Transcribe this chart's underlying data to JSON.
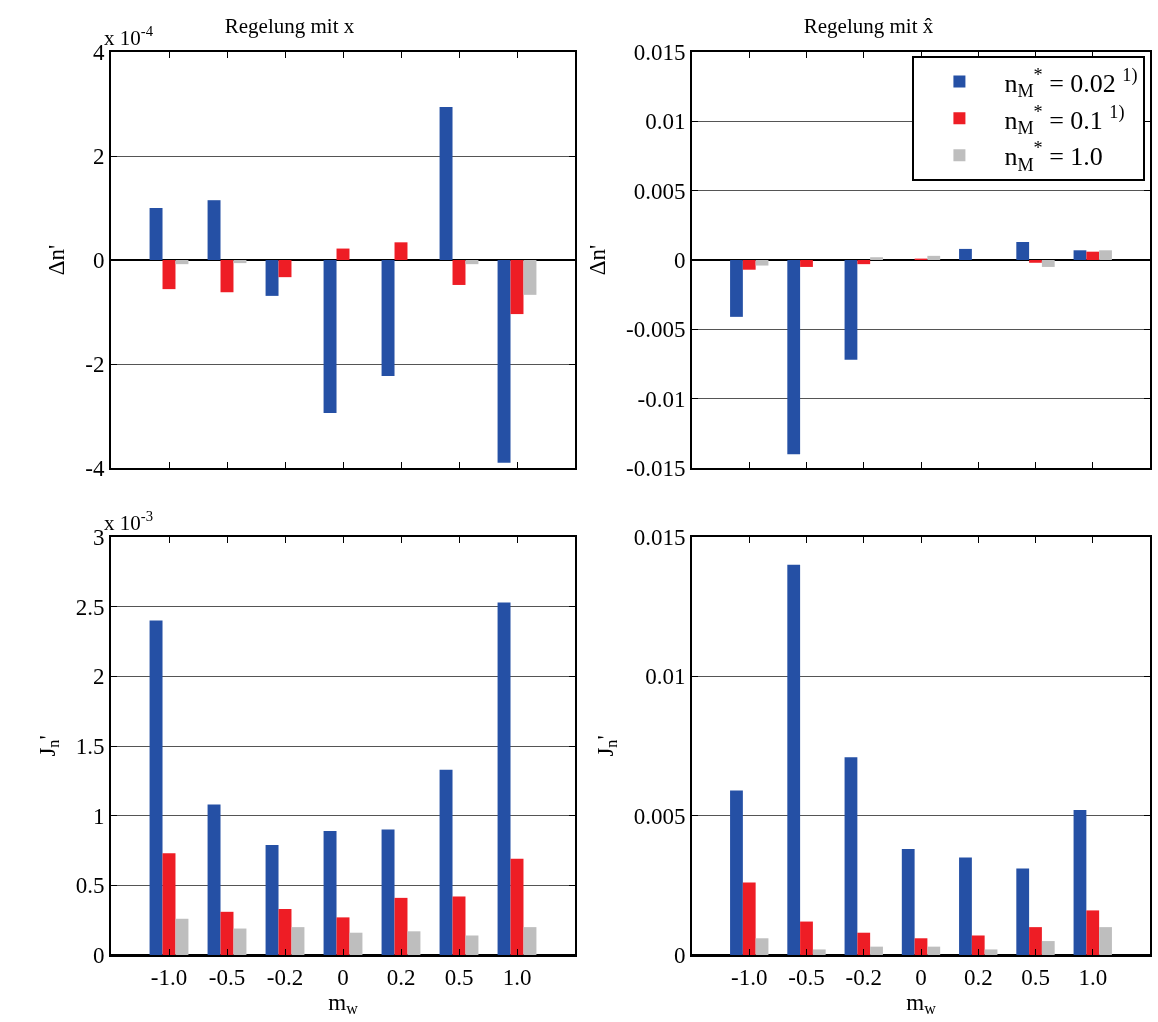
{
  "chart_data": [
    {
      "type": "bar",
      "title": "Regelung mit x",
      "ylabel": "Δn'",
      "annotations": [
        "x 10$^{-4}$"
      ],
      "categories": [
        "-1.0",
        "-0.5",
        "-0.2",
        "0",
        "0.2",
        "0.5",
        "1.0"
      ],
      "ylim": [
        -4,
        4
      ],
      "yticks": [
        -4,
        -2,
        0,
        2,
        4
      ],
      "grid": "y",
      "legend": false,
      "tick_labels": "y",
      "series": [
        {
          "color": "#2550a5",
          "values": [
            1.0,
            1.15,
            -0.69,
            -2.94,
            -2.23,
            2.94,
            -3.9
          ]
        },
        {
          "color": "#ee1d25",
          "values": [
            -0.56,
            -0.62,
            -0.33,
            0.22,
            0.34,
            -0.48,
            -1.04
          ]
        },
        {
          "color": "#bebebe",
          "values": [
            -0.08,
            -0.06,
            null,
            null,
            null,
            -0.08,
            -0.67
          ]
        }
      ]
    },
    {
      "type": "bar",
      "title": "Regelung mit x̂",
      "ylabel": "Δn'",
      "categories": [
        "-1.0",
        "-0.5",
        "-0.2",
        "0",
        "0.2",
        "0.5",
        "1.0"
      ],
      "ylim": [
        -0.015,
        0.015
      ],
      "yticks": [
        -0.015,
        -0.01,
        -0.005,
        0,
        0.005,
        0.01,
        0.015
      ],
      "grid": "y",
      "legend": "top right",
      "tick_labels": "y",
      "series": [
        {
          "name": "n$_{M}$$^{*}$ = 0.02 $^{1)}$",
          "color": "#2550a5",
          "values": [
            -0.0041,
            -0.014,
            -0.0072,
            0,
            0.0008,
            0.0013,
            0.0007
          ]
        },
        {
          "name": "n$_{M}$$^{*}$ = 0.1 $^{1)}$",
          "color": "#ee1d25",
          "values": [
            -0.0007,
            -0.0005,
            -0.0003,
            0.0001,
            0,
            -0.0002,
            0.0006
          ]
        },
        {
          "name": "n$_{M}$$^{*}$ = 1.0",
          "color": "#bebebe",
          "values": [
            -0.0004,
            0,
            0.0002,
            0.0003,
            0,
            -0.0005,
            0.0007
          ]
        }
      ]
    },
    {
      "type": "bar",
      "xlabel": "m$_{w}$",
      "ylabel": "J$_{n}$'",
      "annotations": [
        "x 10$^{-3}$"
      ],
      "categories": [
        "-1.0",
        "-0.5",
        "-0.2",
        "0",
        "0.2",
        "0.5",
        "1.0"
      ],
      "ylim": [
        0,
        3
      ],
      "yticks": [
        0,
        0.5,
        1,
        1.5,
        2,
        2.5,
        3
      ],
      "grid": "y",
      "legend": false,
      "series": [
        {
          "color": "#2550a5",
          "values": [
            2.4,
            1.08,
            0.79,
            0.89,
            0.9,
            1.33,
            2.53
          ]
        },
        {
          "color": "#ee1d25",
          "values": [
            0.73,
            0.31,
            0.33,
            0.27,
            0.41,
            0.42,
            0.69
          ]
        },
        {
          "color": "#bebebe",
          "values": [
            0.26,
            0.19,
            0.2,
            0.16,
            0.17,
            0.14,
            0.2
          ]
        }
      ]
    },
    {
      "type": "bar",
      "xlabel": "m$_{w}$",
      "ylabel": "J$_{n}$'",
      "categories": [
        "-1.0",
        "-0.5",
        "-0.2",
        "0",
        "0.2",
        "0.5",
        "1.0"
      ],
      "ylim": [
        0,
        0.015
      ],
      "yticks": [
        0,
        0.005,
        0.01,
        0.015
      ],
      "grid": "y",
      "legend": false,
      "series": [
        {
          "color": "#2550a5",
          "values": [
            0.0059,
            0.014,
            0.0071,
            0.0038,
            0.0035,
            0.0031,
            0.0052
          ]
        },
        {
          "color": "#ee1d25",
          "values": [
            0.0026,
            0.0012,
            0.0008,
            0.0006,
            0.0007,
            0.001,
            0.0016
          ]
        },
        {
          "color": "#bebebe",
          "values": [
            0.0006,
            0.0002,
            0.0003,
            0.0003,
            0.0002,
            0.0005,
            0.001
          ]
        }
      ]
    }
  ]
}
